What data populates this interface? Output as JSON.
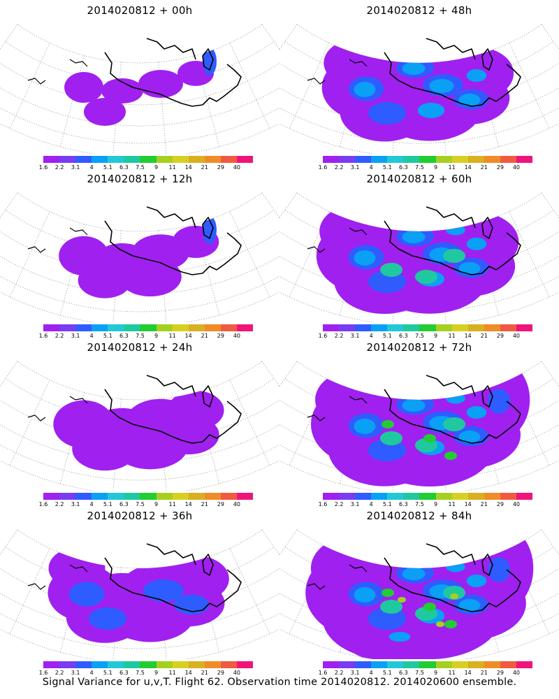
{
  "figure": {
    "footer": "Signal Variance for u,v,T. Flight 62. Observation time 2014020812. 2014020600 ensemble."
  },
  "colorbar": {
    "tick_labels": [
      "1.6",
      "2.2",
      "3.1",
      "4",
      "5.1",
      "6.3",
      "7.5",
      "9",
      "11",
      "14",
      "21",
      "29",
      "40"
    ],
    "colors": [
      "#a020f0",
      "#7a3cf0",
      "#2f5cff",
      "#0aa0f5",
      "#22c8d8",
      "#20c8a0",
      "#22cc33",
      "#a6d020",
      "#d8d020",
      "#d8b020",
      "#f08c28",
      "#f05a40",
      "#f0147a"
    ]
  },
  "panels": [
    {
      "title": "2014020812 + 00h",
      "col": 0,
      "row": 0,
      "level": 0
    },
    {
      "title": "2014020812 + 48h",
      "col": 1,
      "row": 0,
      "level": 4
    },
    {
      "title": "2014020812 + 12h",
      "col": 0,
      "row": 1,
      "level": 1
    },
    {
      "title": "2014020812 + 60h",
      "col": 1,
      "row": 1,
      "level": 5
    },
    {
      "title": "2014020812 + 24h",
      "col": 0,
      "row": 2,
      "level": 2
    },
    {
      "title": "2014020812 + 72h",
      "col": 1,
      "row": 2,
      "level": 6
    },
    {
      "title": "2014020812 + 36h",
      "col": 0,
      "row": 3,
      "level": 3
    },
    {
      "title": "2014020812 + 84h",
      "col": 1,
      "row": 3,
      "level": 7
    }
  ]
}
